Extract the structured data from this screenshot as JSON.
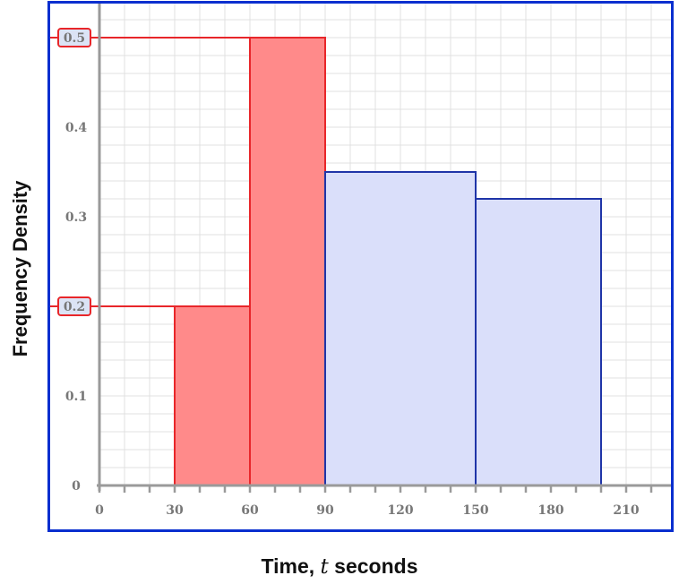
{
  "chart_data": {
    "type": "bar",
    "subtype": "histogram",
    "title": "",
    "xlabel_main": "Time, ",
    "xlabel_var": "t",
    "xlabel_tail": " seconds",
    "ylabel": "Frequency Density",
    "xlim": [
      0,
      230
    ],
    "ylim": [
      0,
      0.55
    ],
    "x_ticks": [
      0,
      30,
      60,
      90,
      120,
      150,
      180,
      210
    ],
    "x_tick_labels": [
      "0",
      "30",
      "60",
      "90",
      "120",
      "150",
      "180",
      "210"
    ],
    "y_ticks": [
      0,
      0.1,
      0.2,
      0.3,
      0.4,
      0.5
    ],
    "y_tick_labels": [
      "0",
      "0.1",
      "0.2",
      "0.3",
      "0.4",
      "0.5"
    ],
    "highlighted_y_ticks": [
      0.2,
      0.5
    ],
    "grid": true,
    "bars": [
      {
        "x_start": 30,
        "x_end": 60,
        "frequency_density": 0.2,
        "highlight": true
      },
      {
        "x_start": 60,
        "x_end": 90,
        "frequency_density": 0.5,
        "highlight": true
      },
      {
        "x_start": 90,
        "x_end": 150,
        "frequency_density": 0.35,
        "highlight": false
      },
      {
        "x_start": 150,
        "x_end": 200,
        "frequency_density": 0.32,
        "highlight": false
      }
    ],
    "colors": {
      "highlight_fill": "#ff8a8a",
      "highlight_stroke": "#e8262a",
      "bar_fill": "#dadffa",
      "bar_stroke": "#1f35a8",
      "frame": "#0a2fcf",
      "grid": "#e0e0e0",
      "axis": "#9a9a9a",
      "tick_text": "#777777",
      "callout_fill": "#dbe3f5"
    }
  }
}
